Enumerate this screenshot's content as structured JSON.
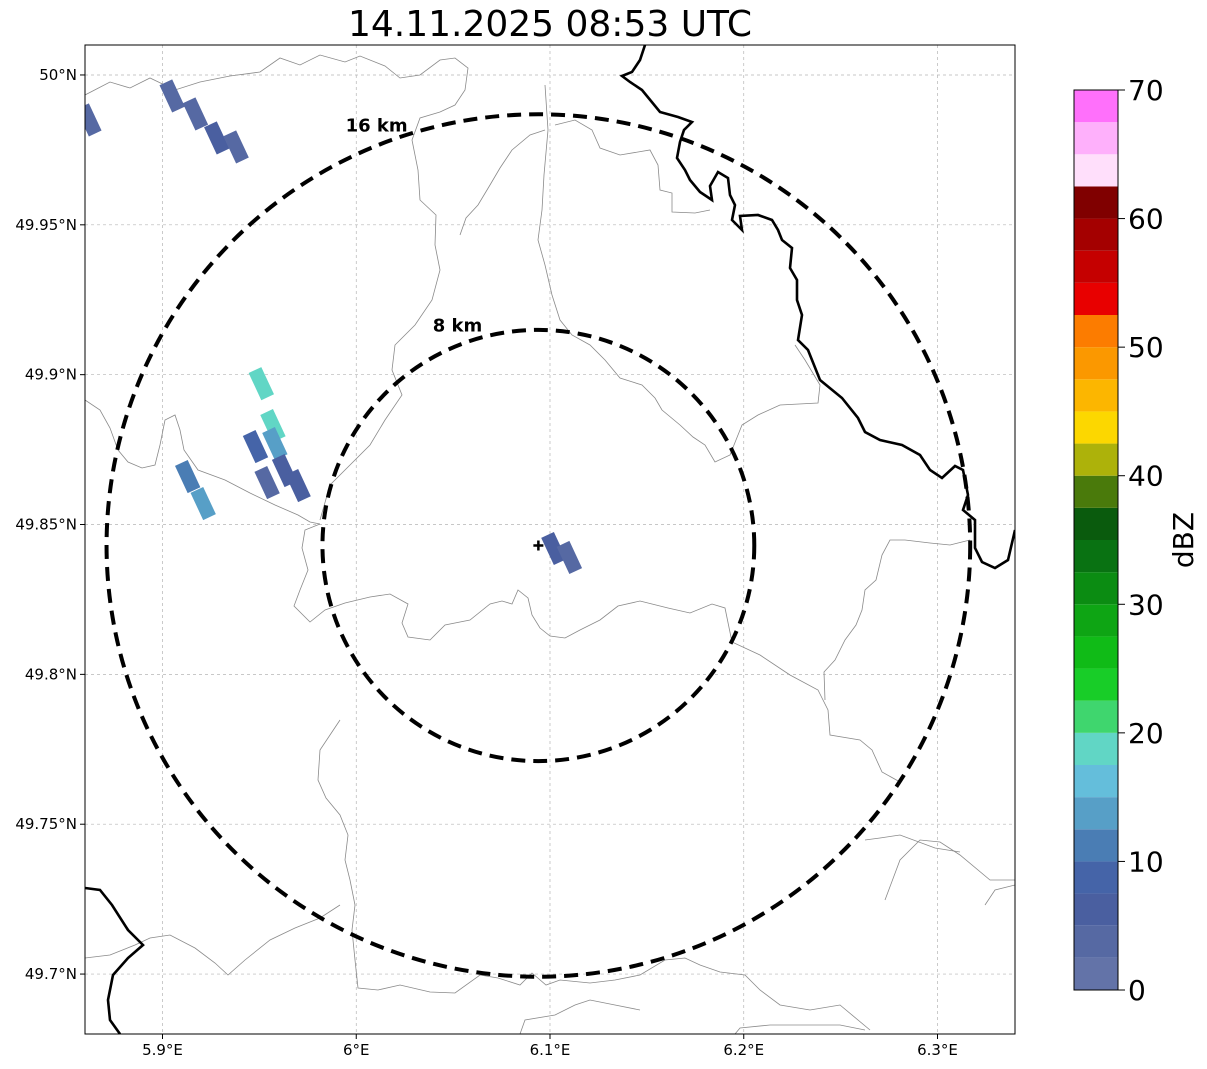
{
  "title": "14.11.2025 08:53 UTC",
  "map": {
    "lon_range": [
      5.86,
      6.34
    ],
    "lat_range": [
      49.68,
      50.01
    ],
    "lon_ticks": [
      {
        "value": 5.9,
        "label": "5.9°E"
      },
      {
        "value": 6.0,
        "label": "6°E"
      },
      {
        "value": 6.1,
        "label": "6.1°E"
      },
      {
        "value": 6.2,
        "label": "6.2°E"
      },
      {
        "value": 6.3,
        "label": "6.3°E"
      }
    ],
    "lat_ticks": [
      {
        "value": 49.7,
        "label": "49.7°N"
      },
      {
        "value": 49.75,
        "label": "49.75°N"
      },
      {
        "value": 49.8,
        "label": "49.8°N"
      },
      {
        "value": 49.85,
        "label": "49.85°N"
      },
      {
        "value": 49.9,
        "label": "49.9°N"
      },
      {
        "value": 49.95,
        "label": "49.95°N"
      },
      {
        "value": 50.0,
        "label": "50°N"
      }
    ],
    "grid": true,
    "radar_site": {
      "lon": 6.094,
      "lat": 49.843
    },
    "range_rings": [
      {
        "label": "8 km",
        "radius_km": 8
      },
      {
        "label": "16 km",
        "radius_km": 16
      }
    ]
  },
  "echoes": [
    {
      "lon": 5.862,
      "lat": 49.985,
      "dbz": 4
    },
    {
      "lon": 5.905,
      "lat": 49.993,
      "dbz": 4
    },
    {
      "lon": 5.917,
      "lat": 49.987,
      "dbz": 3
    },
    {
      "lon": 5.928,
      "lat": 49.979,
      "dbz": 6
    },
    {
      "lon": 5.938,
      "lat": 49.976,
      "dbz": 4
    },
    {
      "lon": 5.951,
      "lat": 49.897,
      "dbz": 19
    },
    {
      "lon": 5.957,
      "lat": 49.883,
      "dbz": 18
    },
    {
      "lon": 5.948,
      "lat": 49.876,
      "dbz": 9
    },
    {
      "lon": 5.958,
      "lat": 49.877,
      "dbz": 13
    },
    {
      "lon": 5.963,
      "lat": 49.868,
      "dbz": 6
    },
    {
      "lon": 5.954,
      "lat": 49.864,
      "dbz": 3
    },
    {
      "lon": 5.97,
      "lat": 49.863,
      "dbz": 5
    },
    {
      "lon": 5.913,
      "lat": 49.866,
      "dbz": 10
    },
    {
      "lon": 5.921,
      "lat": 49.857,
      "dbz": 14
    },
    {
      "lon": 6.102,
      "lat": 49.842,
      "dbz": 6
    },
    {
      "lon": 6.11,
      "lat": 49.839,
      "dbz": 4
    }
  ],
  "colorbar": {
    "label": "dBZ",
    "min": 0,
    "max": 70,
    "step": 2.5,
    "tick_labels": [
      "0",
      "10",
      "20",
      "30",
      "40",
      "50",
      "60",
      "70"
    ],
    "colors": [
      "#6373a8",
      "#5669a3",
      "#4a5fa0",
      "#4564a8",
      "#4a7db4",
      "#579fc7",
      "#64bedb",
      "#61d6c5",
      "#3fd66e",
      "#18cd28",
      "#10bb17",
      "#0ea514",
      "#0b8c12",
      "#097212",
      "#0a5b0d",
      "#4a7a0b",
      "#adb20a",
      "#fcd700",
      "#fcb600",
      "#fb9800",
      "#fc7c00",
      "#e80000",
      "#c50000",
      "#a40000",
      "#800000",
      "#ffdffb",
      "#feb0fb",
      "#ff70fb",
      "#ee33ee"
    ]
  }
}
